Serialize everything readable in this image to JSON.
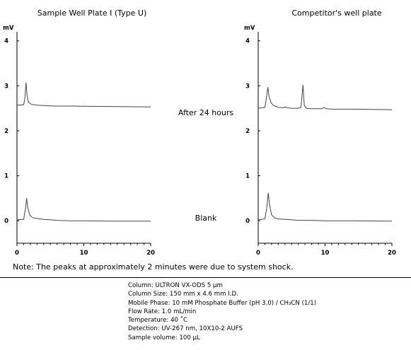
{
  "chart_data": [
    {
      "type": "line",
      "title": "Sample Well Plate I (Type U)",
      "ylabel": "mV",
      "xlim": [
        0,
        20
      ],
      "ylim": [
        -0.5,
        4.2
      ],
      "x_ticks": [
        "0",
        "10",
        "20"
      ],
      "y_ticks": [
        "0",
        "1",
        "2",
        "3",
        "4"
      ],
      "series": [
        {
          "name": "After 24 hours",
          "x": [
            0,
            1.0,
            1.2,
            1.35,
            1.5,
            1.7,
            2.0,
            2.5,
            3.0,
            4.0,
            5.0,
            6.0,
            8.0,
            10.0,
            14.0,
            20.0
          ],
          "y": [
            2.57,
            2.58,
            2.74,
            3.07,
            2.8,
            2.64,
            2.6,
            2.58,
            2.57,
            2.56,
            2.555,
            2.55,
            2.55,
            2.545,
            2.54,
            2.53
          ]
        },
        {
          "name": "Blank",
          "x": [
            0,
            1.0,
            1.3,
            1.45,
            1.6,
            1.9,
            2.3,
            3.0,
            4.0,
            5.0,
            6.0,
            8.0,
            10.0,
            14.0,
            20.0
          ],
          "y": [
            0.02,
            0.03,
            0.3,
            0.5,
            0.3,
            0.13,
            0.07,
            0.05,
            0.03,
            0.02,
            0.01,
            0.0,
            0.0,
            -0.01,
            -0.01
          ]
        }
      ]
    },
    {
      "type": "line",
      "title": "Competitor's well plate",
      "ylabel": "mV",
      "xlim": [
        0,
        20
      ],
      "ylim": [
        -0.5,
        4.2
      ],
      "x_ticks": [
        "0",
        "10",
        "20"
      ],
      "y_ticks": [
        "0",
        "1",
        "2",
        "3",
        "4"
      ],
      "series": [
        {
          "name": "After 24 hours",
          "x": [
            0,
            1.0,
            1.2,
            1.45,
            1.6,
            1.9,
            2.3,
            3.0,
            3.8,
            4.0,
            4.3,
            5.0,
            6.0,
            6.4,
            6.7,
            6.9,
            7.2,
            8.0,
            9.5,
            9.8,
            10.2,
            11.0,
            14.0,
            20.0
          ],
          "y": [
            2.5,
            2.52,
            2.7,
            2.97,
            2.78,
            2.63,
            2.56,
            2.52,
            2.51,
            2.53,
            2.51,
            2.5,
            2.5,
            2.52,
            3.02,
            2.56,
            2.5,
            2.49,
            2.49,
            2.52,
            2.49,
            2.48,
            2.48,
            2.47
          ]
        },
        {
          "name": "Blank",
          "x": [
            0,
            1.0,
            1.3,
            1.5,
            1.7,
            2.0,
            2.5,
            3.0,
            4.0,
            5.0,
            6.0,
            8.0,
            10.0,
            14.0,
            20.0
          ],
          "y": [
            0.02,
            0.04,
            0.3,
            0.62,
            0.35,
            0.13,
            0.06,
            0.04,
            0.03,
            0.02,
            0.01,
            0.01,
            0.0,
            0.0,
            -0.01
          ]
        }
      ]
    }
  ],
  "figure": {
    "label_after": "After 24 hours",
    "label_blank": "Blank",
    "note": "Note: The peaks at approximately 2 minutes were due to system shock."
  },
  "conditions": {
    "column": "Column: ULTRON VX-ODS 5 μm",
    "column_size": "Column Size: 150 mm x 4.6 mm I.D.",
    "mobile_phase": "Mobile Phase: 10 mM Phosphate Buffer (pH 3.0) / CH₃CN (1/1)",
    "flow_rate": "Flow Rate: 1.0 mL/min",
    "temperature": "Temperature: 40 ˚C",
    "detection": "Detection: UV-267 nm, 10X10-2 AUFS",
    "sample_volume": "Sample volume: 100 μL"
  }
}
